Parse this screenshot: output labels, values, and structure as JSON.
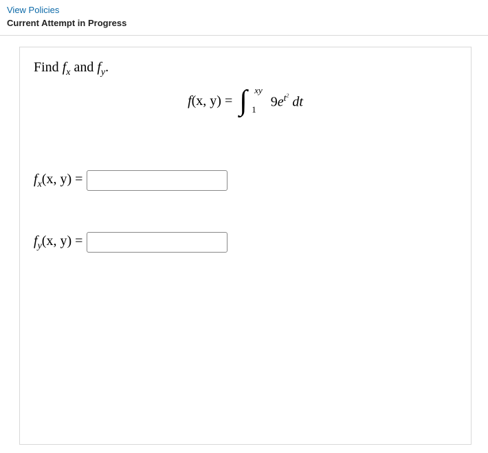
{
  "header": {
    "policies_link": "View Policies",
    "attempt_status": "Current Attempt in Progress"
  },
  "question": {
    "prompt_prefix": "Find ",
    "prompt_fx": "f",
    "prompt_fx_sub": "x",
    "prompt_mid": " and ",
    "prompt_fy": "f",
    "prompt_fy_sub": "y",
    "prompt_suffix": ".",
    "equation": {
      "lhs_f": "f",
      "lhs_args": "(x, y)",
      "equals": " = ",
      "int_lower": "1",
      "int_upper": "xy",
      "coef": "9",
      "e": "e",
      "exp_base": "t",
      "exp_pow": "2",
      "dt": " dt"
    },
    "answers": {
      "fx_label_f": "f",
      "fx_label_sub": "x",
      "fx_label_args": "(x, y) = ",
      "fx_value": "",
      "fy_label_f": "f",
      "fy_label_sub": "y",
      "fy_label_args": "(x, y) = ",
      "fy_value": ""
    }
  }
}
